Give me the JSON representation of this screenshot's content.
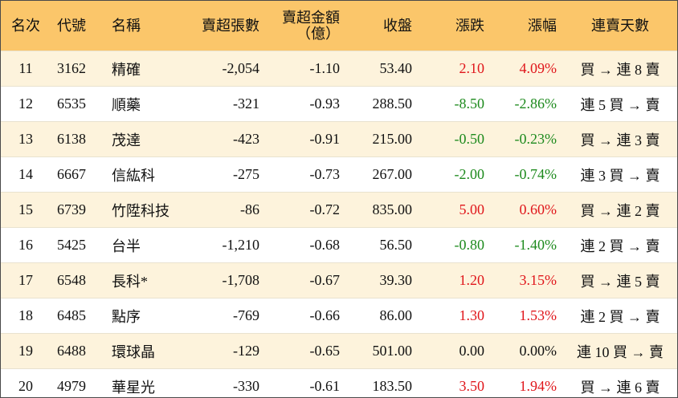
{
  "table": {
    "header": [
      "名次",
      "代號",
      "名稱",
      "賣超張數",
      [
        "賣超金額",
        "（億）"
      ],
      "收盤",
      "漲跌",
      "漲幅",
      "連賣天數"
    ],
    "rows": [
      [
        "11",
        "3162",
        "精確",
        "-2,054",
        "-1.10",
        "53.40",
        "2.10",
        "4.09%",
        "買 → 連 8 賣"
      ],
      [
        "12",
        "6535",
        "順藥",
        "-321",
        "-0.93",
        "288.50",
        "-8.50",
        "-2.86%",
        "連 5 買 → 賣"
      ],
      [
        "13",
        "6138",
        "茂達",
        "-423",
        "-0.91",
        "215.00",
        "-0.50",
        "-0.23%",
        "買 → 連 3 賣"
      ],
      [
        "14",
        "6667",
        "信紘科",
        "-275",
        "-0.73",
        "267.00",
        "-2.00",
        "-0.74%",
        "連 3 買 → 賣"
      ],
      [
        "15",
        "6739",
        "竹陞科技",
        "-86",
        "-0.72",
        "835.00",
        "5.00",
        "0.60%",
        "買 → 連 2 賣"
      ],
      [
        "16",
        "5425",
        "台半",
        "-1,210",
        "-0.68",
        "56.50",
        "-0.80",
        "-1.40%",
        "連 2 買 → 賣"
      ],
      [
        "17",
        "6548",
        "長科*",
        "-1,708",
        "-0.67",
        "39.30",
        "1.20",
        "3.15%",
        "買 → 連 5 賣"
      ],
      [
        "18",
        "6485",
        "點序",
        "-769",
        "-0.66",
        "86.00",
        "1.30",
        "1.53%",
        "連 2 買 → 賣"
      ],
      [
        "19",
        "6488",
        "環球晶",
        "-129",
        "-0.65",
        "501.00",
        "0.00",
        "0.00%",
        "連 10 買 → 賣"
      ],
      [
        "20",
        "4979",
        "華星光",
        "-330",
        "-0.61",
        "183.50",
        "3.50",
        "1.94%",
        "買 → 連 6 賣"
      ]
    ]
  }
}
